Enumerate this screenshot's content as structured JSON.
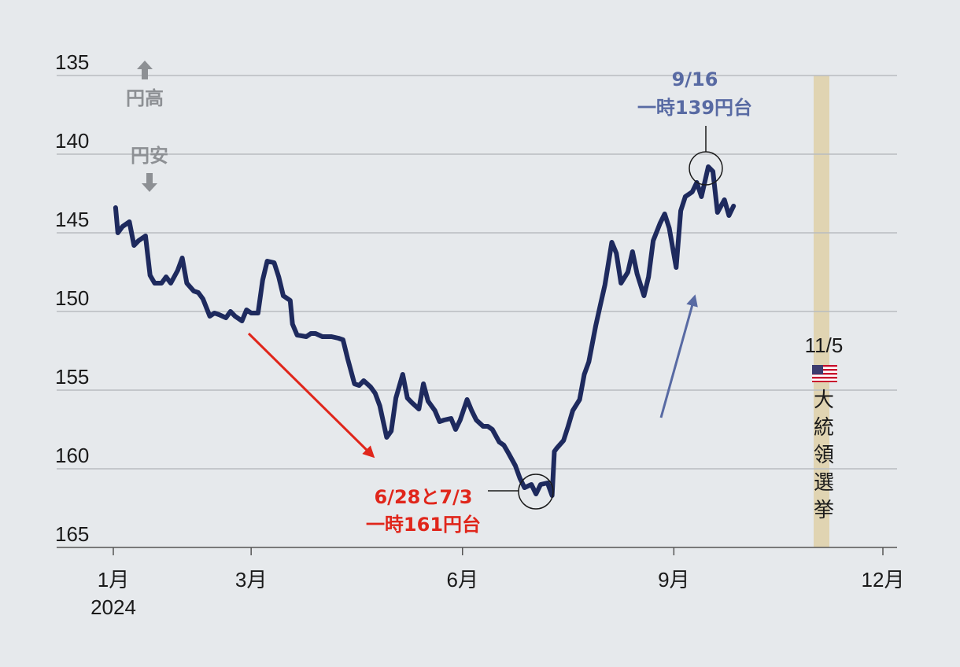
{
  "chart_data": {
    "type": "line",
    "y_inverted": true,
    "ylim": [
      135,
      165
    ],
    "y_ticks": [
      "135",
      "140",
      "145",
      "150",
      "155",
      "160",
      "165"
    ],
    "x_ticks": [
      {
        "label": "1月",
        "sub": "2024",
        "month": 1
      },
      {
        "label": "3月",
        "sub": "",
        "month": 3
      },
      {
        "label": "6月",
        "sub": "",
        "month": 6
      },
      {
        "label": "9月",
        "sub": "",
        "month": 9
      },
      {
        "label": "12月",
        "sub": "",
        "month": 12
      }
    ],
    "direction_labels": {
      "up": "円高",
      "down": "円安"
    },
    "series": [
      {
        "color": "#1e2a5e",
        "x": [
          "2024-01-02",
          "2024-01-03",
          "2024-01-05",
          "2024-01-08",
          "2024-01-10",
          "2024-01-12",
          "2024-01-15",
          "2024-01-17",
          "2024-01-19",
          "2024-01-22",
          "2024-01-24",
          "2024-01-26",
          "2024-01-29",
          "2024-01-31",
          "2024-02-02",
          "2024-02-05",
          "2024-02-07",
          "2024-02-09",
          "2024-02-12",
          "2024-02-14",
          "2024-02-16",
          "2024-02-19",
          "2024-02-21",
          "2024-02-23",
          "2024-02-26",
          "2024-02-28",
          "2024-03-01",
          "2024-03-04",
          "2024-03-06",
          "2024-03-08",
          "2024-03-11",
          "2024-03-13",
          "2024-03-15",
          "2024-03-18",
          "2024-03-19",
          "2024-03-21",
          "2024-03-25",
          "2024-03-27",
          "2024-03-29",
          "2024-04-01",
          "2024-04-03",
          "2024-04-05",
          "2024-04-08",
          "2024-04-10",
          "2024-04-12",
          "2024-04-15",
          "2024-04-17",
          "2024-04-19",
          "2024-04-22",
          "2024-04-24",
          "2024-04-26",
          "2024-04-29",
          "2024-05-01",
          "2024-05-03",
          "2024-05-06",
          "2024-05-08",
          "2024-05-10",
          "2024-05-13",
          "2024-05-15",
          "2024-05-17",
          "2024-05-20",
          "2024-05-22",
          "2024-05-24",
          "2024-05-27",
          "2024-05-29",
          "2024-05-31",
          "2024-06-03",
          "2024-06-05",
          "2024-06-07",
          "2024-06-10",
          "2024-06-12",
          "2024-06-14",
          "2024-06-17",
          "2024-06-19",
          "2024-06-21",
          "2024-06-24",
          "2024-06-26",
          "2024-06-28",
          "2024-07-01",
          "2024-07-03",
          "2024-07-05",
          "2024-07-08",
          "2024-07-10",
          "2024-07-11",
          "2024-07-12",
          "2024-07-15",
          "2024-07-17",
          "2024-07-19",
          "2024-07-22",
          "2024-07-24",
          "2024-07-26",
          "2024-07-29",
          "2024-07-31",
          "2024-08-02",
          "2024-08-05",
          "2024-08-07",
          "2024-08-09",
          "2024-08-12",
          "2024-08-14",
          "2024-08-16",
          "2024-08-19",
          "2024-08-21",
          "2024-08-23",
          "2024-08-26",
          "2024-08-28",
          "2024-08-30",
          "2024-09-02",
          "2024-09-04",
          "2024-09-06",
          "2024-09-09",
          "2024-09-11",
          "2024-09-13",
          "2024-09-16",
          "2024-09-18",
          "2024-09-20",
          "2024-09-23",
          "2024-09-25",
          "2024-09-27"
        ],
        "y": [
          143.4,
          145.0,
          144.6,
          144.3,
          145.8,
          145.5,
          145.2,
          147.7,
          148.2,
          148.2,
          147.8,
          148.2,
          147.4,
          146.6,
          148.2,
          148.7,
          148.8,
          149.2,
          150.3,
          150.1,
          150.2,
          150.4,
          150.0,
          150.3,
          150.6,
          149.9,
          150.1,
          150.1,
          148.0,
          146.8,
          146.9,
          147.8,
          149.0,
          149.3,
          150.8,
          151.5,
          151.6,
          151.4,
          151.4,
          151.6,
          151.6,
          151.6,
          151.7,
          151.8,
          153.0,
          154.6,
          154.7,
          154.4,
          154.8,
          155.2,
          156.0,
          158.0,
          157.6,
          155.5,
          154.0,
          155.5,
          155.8,
          156.2,
          154.6,
          155.7,
          156.3,
          157.0,
          156.9,
          156.8,
          157.5,
          156.9,
          155.6,
          156.3,
          156.9,
          157.3,
          157.3,
          157.5,
          158.3,
          158.5,
          159.0,
          159.8,
          160.6,
          161.2,
          161.0,
          161.6,
          161.0,
          160.9,
          161.7,
          158.9,
          158.7,
          158.2,
          157.3,
          156.3,
          155.6,
          154.0,
          153.2,
          150.9,
          149.6,
          148.3,
          145.6,
          146.3,
          148.2,
          147.5,
          146.2,
          147.6,
          149.0,
          147.8,
          145.5,
          144.4,
          143.8,
          144.7,
          147.2,
          143.6,
          142.7,
          142.4,
          141.8,
          142.7,
          140.8,
          141.1,
          143.7,
          142.9,
          143.9,
          143.3
        ]
      }
    ],
    "annotations": [
      {
        "date_label": "9/16",
        "text": "一時139円台",
        "color": "#586aa3",
        "date": "2024-09-16",
        "value": 140.7
      },
      {
        "date_label": "6/28と7/3",
        "text": "一時161円台",
        "color": "#e0261b",
        "date": "2024-06-28",
        "value": 161.3
      }
    ],
    "event": {
      "date_label": "11/5",
      "flag": "🇺🇸",
      "text": [
        "大",
        "統",
        "領",
        "選",
        "挙"
      ],
      "date": "2024-11-05",
      "band_color": "#e0d4b2"
    },
    "trend_arrows": [
      {
        "color": "#e0261b",
        "direction": "down"
      },
      {
        "color": "#586aa3",
        "direction": "up"
      }
    ],
    "grid": true
  }
}
